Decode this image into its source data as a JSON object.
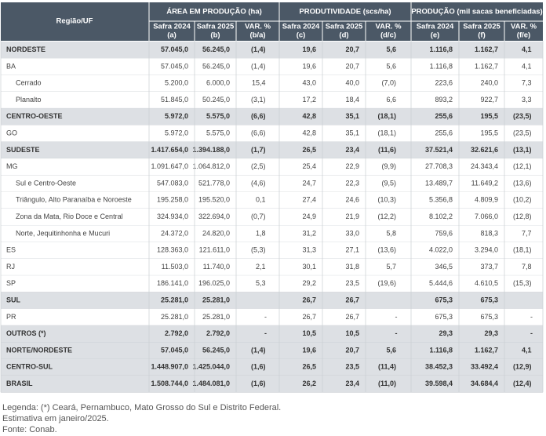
{
  "table": {
    "corner": "Região/UF",
    "groups": [
      "ÁREA EM PRODUÇÃO (ha)",
      "PRODUTIVIDADE (scs/ha)",
      "PRODUÇÃO (mil sacas beneficiadas)"
    ],
    "columns": [
      {
        "label": "Safra 2024",
        "code": "(a)"
      },
      {
        "label": "Safra 2025",
        "code": "(b)"
      },
      {
        "label": "VAR. %",
        "code": "(b/a)"
      },
      {
        "label": "Safra 2024",
        "code": "(c)"
      },
      {
        "label": "Safra 2025",
        "code": "(d)"
      },
      {
        "label": "VAR. %",
        "code": "(d/c)"
      },
      {
        "label": "Safra 2024",
        "code": "(e)"
      },
      {
        "label": "Safra 2025",
        "code": "(f)"
      },
      {
        "label": "VAR. %",
        "code": "(f/e)"
      }
    ],
    "rows": [
      {
        "label": "NORDESTE",
        "cells": [
          "57.045,0",
          "56.245,0",
          "(1,4)",
          "19,6",
          "20,7",
          "5,6",
          "1.116,8",
          "1.162,7",
          "4,1"
        ]
      },
      {
        "label": "BA",
        "cells": [
          "57.045,0",
          "56.245,0",
          "(1,4)",
          "19,6",
          "20,7",
          "5,6",
          "1.116,8",
          "1.162,7",
          "4,1"
        ]
      },
      {
        "label": "Cerrado",
        "cells": [
          "5.200,0",
          "6.000,0",
          "15,4",
          "43,0",
          "40,0",
          "(7,0)",
          "223,6",
          "240,0",
          "7,3"
        ]
      },
      {
        "label": "Planalto",
        "cells": [
          "51.845,0",
          "50.245,0",
          "(3,1)",
          "17,2",
          "18,4",
          "6,6",
          "893,2",
          "922,7",
          "3,3"
        ]
      },
      {
        "label": "CENTRO-OESTE",
        "cells": [
          "5.972,0",
          "5.575,0",
          "(6,6)",
          "42,8",
          "35,1",
          "(18,1)",
          "255,6",
          "195,5",
          "(23,5)"
        ]
      },
      {
        "label": "GO",
        "cells": [
          "5.972,0",
          "5.575,0",
          "(6,6)",
          "42,8",
          "35,1",
          "(18,1)",
          "255,6",
          "195,5",
          "(23,5)"
        ]
      },
      {
        "label": "SUDESTE",
        "cells": [
          "1.417.654,0",
          "1.394.188,0",
          "(1,7)",
          "26,5",
          "23,4",
          "(11,6)",
          "37.521,4",
          "32.621,6",
          "(13,1)"
        ]
      },
      {
        "label": "MG",
        "cells": [
          "1.091.647,0",
          "1.064.812,0",
          "(2,5)",
          "25,4",
          "22,9",
          "(9,9)",
          "27.708,3",
          "24.343,4",
          "(12,1)"
        ]
      },
      {
        "label": "Sul e Centro-Oeste",
        "cells": [
          "547.083,0",
          "521.778,0",
          "(4,6)",
          "24,7",
          "22,3",
          "(9,5)",
          "13.489,7",
          "11.649,2",
          "(13,6)"
        ]
      },
      {
        "label": "Triângulo, Alto Paranaíba e Noroeste",
        "cells": [
          "195.258,0",
          "195.520,0",
          "0,1",
          "27,4",
          "24,6",
          "(10,3)",
          "5.356,8",
          "4.809,9",
          "(10,2)"
        ]
      },
      {
        "label": "Zona da Mata, Rio Doce e Central",
        "cells": [
          "324.934,0",
          "322.694,0",
          "(0,7)",
          "24,9",
          "21,9",
          "(12,2)",
          "8.102,2",
          "7.066,0",
          "(12,8)"
        ]
      },
      {
        "label": "Norte, Jequitinhonha e Mucuri",
        "cells": [
          "24.372,0",
          "24.820,0",
          "1,8",
          "31,2",
          "33,0",
          "5,8",
          "759,6",
          "818,3",
          "7,7"
        ]
      },
      {
        "label": "ES",
        "cells": [
          "128.363,0",
          "121.611,0",
          "(5,3)",
          "31,3",
          "27,1",
          "(13,6)",
          "4.022,0",
          "3.294,0",
          "(18,1)"
        ]
      },
      {
        "label": "RJ",
        "cells": [
          "11.503,0",
          "11.740,0",
          "2,1",
          "30,1",
          "31,8",
          "5,7",
          "346,5",
          "373,7",
          "7,8"
        ]
      },
      {
        "label": "SP",
        "cells": [
          "186.141,0",
          "196.025,0",
          "5,3",
          "29,2",
          "23,5",
          "(19,6)",
          "5.444,6",
          "4.610,5",
          "(15,3)"
        ]
      },
      {
        "label": "SUL",
        "cells": [
          "25.281,0",
          "25.281,0",
          null,
          "26,7",
          "26,7",
          null,
          "675,3",
          "675,3",
          null
        ]
      },
      {
        "label": "PR",
        "cells": [
          "25.281,0",
          "25.281,0",
          "-",
          "26,7",
          "26,7",
          "-",
          "675,3",
          "675,3",
          "-"
        ]
      },
      {
        "label": "OUTROS (*)",
        "cells": [
          "2.792,0",
          "2.792,0",
          "-",
          "10,5",
          "10,5",
          "-",
          "29,3",
          "29,3",
          "-"
        ]
      },
      {
        "label": "NORTE/NORDESTE",
        "cells": [
          "57.045,0",
          "56.245,0",
          "(1,4)",
          "19,6",
          "20,7",
          "5,6",
          "1.116,8",
          "1.162,7",
          "4,1"
        ]
      },
      {
        "label": "CENTRO-SUL",
        "cells": [
          "1.448.907,0",
          "1.425.044,0",
          "(1,6)",
          "26,5",
          "23,5",
          "(11,4)",
          "38.452,3",
          "33.492,4",
          "(12,9)"
        ]
      },
      {
        "label": "BRASIL",
        "cells": [
          "1.508.744,0",
          "1.484.081,0",
          "(1,6)",
          "26,2",
          "23,4",
          "(11,0)",
          "39.598,4",
          "34.684,4",
          "(12,4)"
        ]
      }
    ]
  },
  "notes": [
    "Legenda: (*) Ceará, Pernambuco, Mato Grosso do Sul e Distrito Federal.",
    "Estimativa em janeiro/2025.",
    "Fonte: Conab."
  ]
}
